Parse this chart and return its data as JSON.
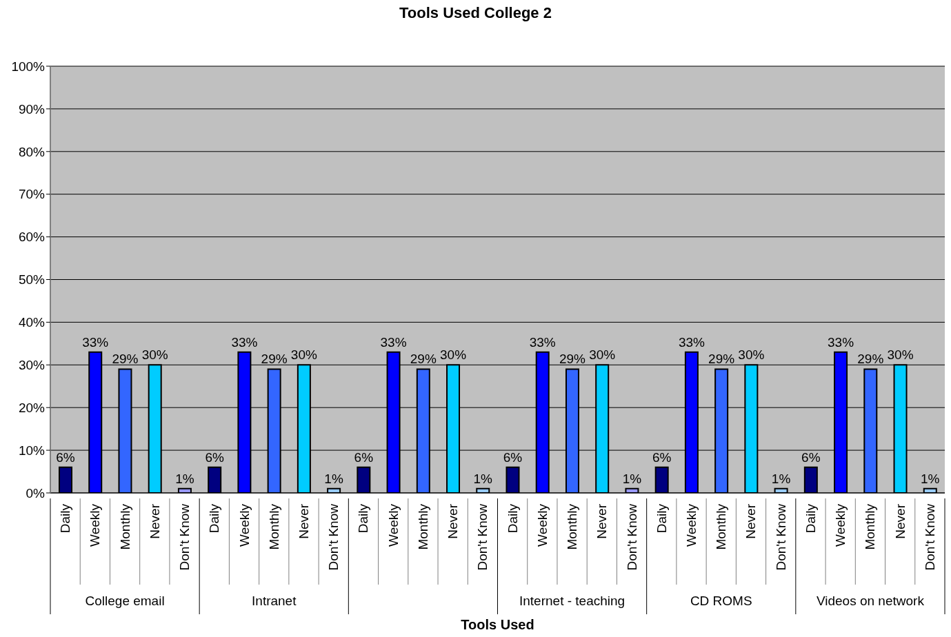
{
  "chart_data": {
    "type": "bar",
    "title": "Tools Used College 2",
    "xlabel": "Tools Used",
    "categories": [
      "College email",
      "Intranet",
      null,
      "Internet - teaching",
      "CD ROMS",
      "Videos on network"
    ],
    "series": [
      {
        "name": "Daily",
        "color": "#000080",
        "values": [
          6,
          6,
          6,
          6,
          6,
          6
        ],
        "value_labels": [
          "6%",
          "6%",
          "6%",
          "6%",
          "6%",
          "6%"
        ]
      },
      {
        "name": "Weekly",
        "color": "#0000ff",
        "values": [
          33,
          33,
          33,
          33,
          33,
          33
        ],
        "value_labels": [
          "33%",
          "33%",
          "33%",
          "33%",
          "33%",
          "33%"
        ]
      },
      {
        "name": "Monthly",
        "color": "#3366ff",
        "values": [
          29,
          29,
          29,
          29,
          29,
          29
        ],
        "value_labels": [
          "29%",
          "29%",
          "29%",
          "29%",
          "29%",
          "29%"
        ]
      },
      {
        "name": "Never",
        "color": "#00ccff",
        "values": [
          30,
          30,
          30,
          30,
          30,
          30
        ],
        "value_labels": [
          "30%",
          "30%",
          "30%",
          "30%",
          "30%",
          "30%"
        ]
      },
      {
        "name": "Don't Know",
        "colors": [
          "#9999ff",
          "#99ccff",
          "#99ccff",
          "#9999ff",
          "#99ccff",
          "#99ccff"
        ],
        "values": [
          1,
          1,
          1,
          1,
          1,
          1
        ],
        "value_labels": [
          "1%",
          "1%",
          "1%",
          "1%",
          "1%",
          "1%"
        ]
      }
    ],
    "ylim": [
      0,
      100
    ],
    "yticks": [
      {
        "value": 0,
        "label": "0%"
      },
      {
        "value": 10,
        "label": "10%"
      },
      {
        "value": 20,
        "label": "20%"
      },
      {
        "value": 30,
        "label": "30%"
      },
      {
        "value": 40,
        "label": "40%"
      },
      {
        "value": 50,
        "label": "50%"
      },
      {
        "value": 60,
        "label": "60%"
      },
      {
        "value": 70,
        "label": "70%"
      },
      {
        "value": 80,
        "label": "80%"
      },
      {
        "value": 90,
        "label": "90%"
      },
      {
        "value": 100,
        "label": "100%"
      }
    ],
    "grid": "y"
  }
}
